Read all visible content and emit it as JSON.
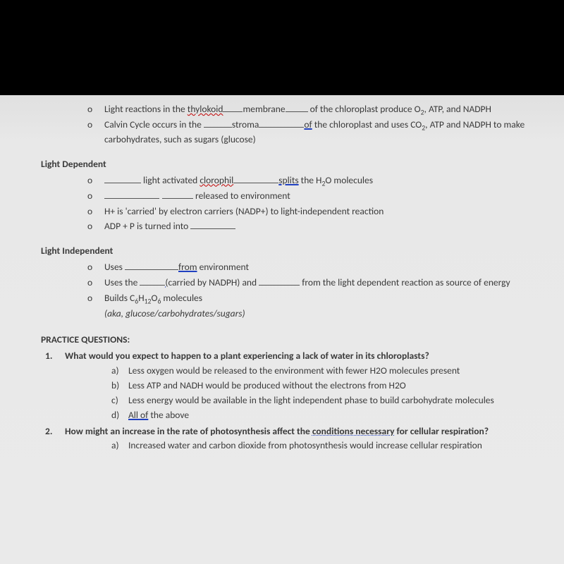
{
  "top_bullets": [
    {
      "pre": "Light reactions in the ",
      "wavy": "thylokoid",
      "blank1_w": 28,
      "fill": "membrane",
      "blank2_w": 32,
      "post_html": " of the chloroplast produce O<sub>2</sub>, ATP, and NADPH"
    },
    {
      "pre": "Calvin Cycle occurs in the ",
      "blank1_w": 40,
      "fill": "stroma",
      "blank2_w": 64,
      "underline_word": "of",
      "post_html": " the chloroplast and uses CO<sub>2</sub>, ATP and NADPH to make carbohydrates, such as sugars (glucose)"
    }
  ],
  "light_dep": {
    "title": "Light Dependent",
    "items": [
      {
        "html": "<span class='blank' style='width:52px'></span> light activated <span class='wavy'>clorophil</span><span class='blank' style='width:64px'></span><span class='blue-ul'>splits</span> the H<sub>2</sub>O molecules"
      },
      {
        "html": "<span class='blank' style='width:78px'></span><span style='display:inline-block;width:4px'></span><span class='blank' style='width:44px'></span> released to environment"
      },
      {
        "html": "H+ is 'carried' by electron carriers (NADP+) to light-independent reaction"
      },
      {
        "html": "ADP + P is turned into <span class='blank' style='width:64px'></span>"
      }
    ]
  },
  "light_indep": {
    "title": "Light Independent",
    "items": [
      {
        "html": "Uses <span class='blank' style='width:76px'></span><span class='blue-ul'>from</span> environment"
      },
      {
        "html": "Uses the <span class='blank' style='width:36px'></span><span class='blue-ul'>(</span>carried by NADPH) and <span class='blank' style='width:58px'></span> from the light dependent reaction as source of energy"
      },
      {
        "html": "Builds C<sub>6</sub>H<sub>12</sub>O<sub>6</sub> molecules"
      }
    ],
    "aka": "(aka, glucose/carbohydrates/sugars)"
  },
  "practice": {
    "heading": "PRACTICE QUESTIONS:",
    "q1": {
      "num": "1.",
      "text": "What would you expect to happen to a plant experiencing a lack of water in its chloroplasts?",
      "answers": [
        {
          "l": "a)",
          "t": "Less oxygen would be released to the environment with fewer H2O molecules present"
        },
        {
          "l": "b)",
          "t": "Less ATP and NADH would be produced without the electrons from H2O"
        },
        {
          "l": "c)",
          "t": "Less energy would be available in the light independent phase to build carbohydrate molecules"
        },
        {
          "l": "d)",
          "t_html": "<span class='blue-ul'>All of</span> the above"
        }
      ]
    },
    "q2": {
      "num": "2.",
      "text_html": "How might an increase in the rate of photosynthesis affect the <span class='dotted-ul'>conditions  necessary</span> for cellular respiration?",
      "answers": [
        {
          "l": "a)",
          "t": "Increased water and carbon dioxide from photosynthesis would increase cellular respiration"
        }
      ]
    }
  },
  "colors": {
    "page_bg": "#e8e8e8",
    "text": "#3a3a3a",
    "wavy": "#c00000",
    "blue": "#2040c0",
    "black_bg": "#000000"
  }
}
